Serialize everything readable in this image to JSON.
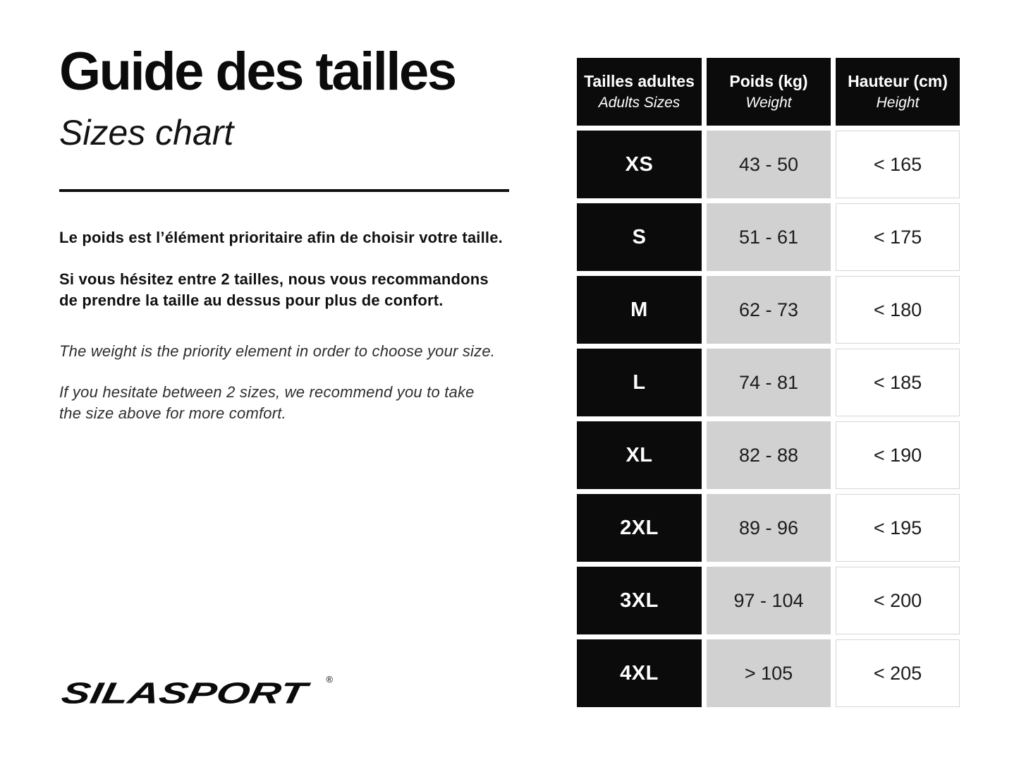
{
  "page": {
    "title_fr": "Guide des tailles",
    "title_en": "Sizes chart"
  },
  "paragraphs": {
    "fr": [
      {
        "lines": [
          "Le poids est l’élément prioritaire afin de choisir votre taille."
        ]
      },
      {
        "lines": [
          "Si vous hésitez entre 2 tailles, nous vous recommandons",
          "de prendre la taille au dessus pour plus de confort."
        ]
      }
    ],
    "en": [
      {
        "lines": [
          "The weight is the priority element in order to choose your size."
        ]
      },
      {
        "lines": [
          "If you hesitate between 2 sizes, we recommend you to take",
          "the size above for more comfort."
        ]
      }
    ]
  },
  "brand": {
    "logo_text": "SILASPORT",
    "registered_mark": "®"
  },
  "colors": {
    "black": "#0b0b0b",
    "white": "#ffffff",
    "cell_gray": "#d1d1d1",
    "border_gray": "#d6d6d6",
    "text_dark": "#1c1c1c"
  },
  "chart_data": {
    "type": "table",
    "title": "Guide des tailles / Sizes chart",
    "columns": [
      {
        "label_fr": "Tailles adultes",
        "label_en": "Adults Sizes"
      },
      {
        "label_fr": "Poids (kg)",
        "label_en": "Weight"
      },
      {
        "label_fr": "Hauteur (cm)",
        "label_en": "Height"
      }
    ],
    "rows": [
      {
        "size": "XS",
        "weight_kg": "43 - 50",
        "height_cm": "< 165"
      },
      {
        "size": "S",
        "weight_kg": "51 - 61",
        "height_cm": "< 175"
      },
      {
        "size": "M",
        "weight_kg": "62 - 73",
        "height_cm": "< 180"
      },
      {
        "size": "L",
        "weight_kg": "74 - 81",
        "height_cm": "< 185"
      },
      {
        "size": "XL",
        "weight_kg": "82 - 88",
        "height_cm": "< 190"
      },
      {
        "size": "2XL",
        "weight_kg": "89 - 96",
        "height_cm": "< 195"
      },
      {
        "size": "3XL",
        "weight_kg": "97 - 104",
        "height_cm": "< 200"
      },
      {
        "size": "4XL",
        "weight_kg": "> 105",
        "height_cm": "< 205"
      }
    ]
  }
}
